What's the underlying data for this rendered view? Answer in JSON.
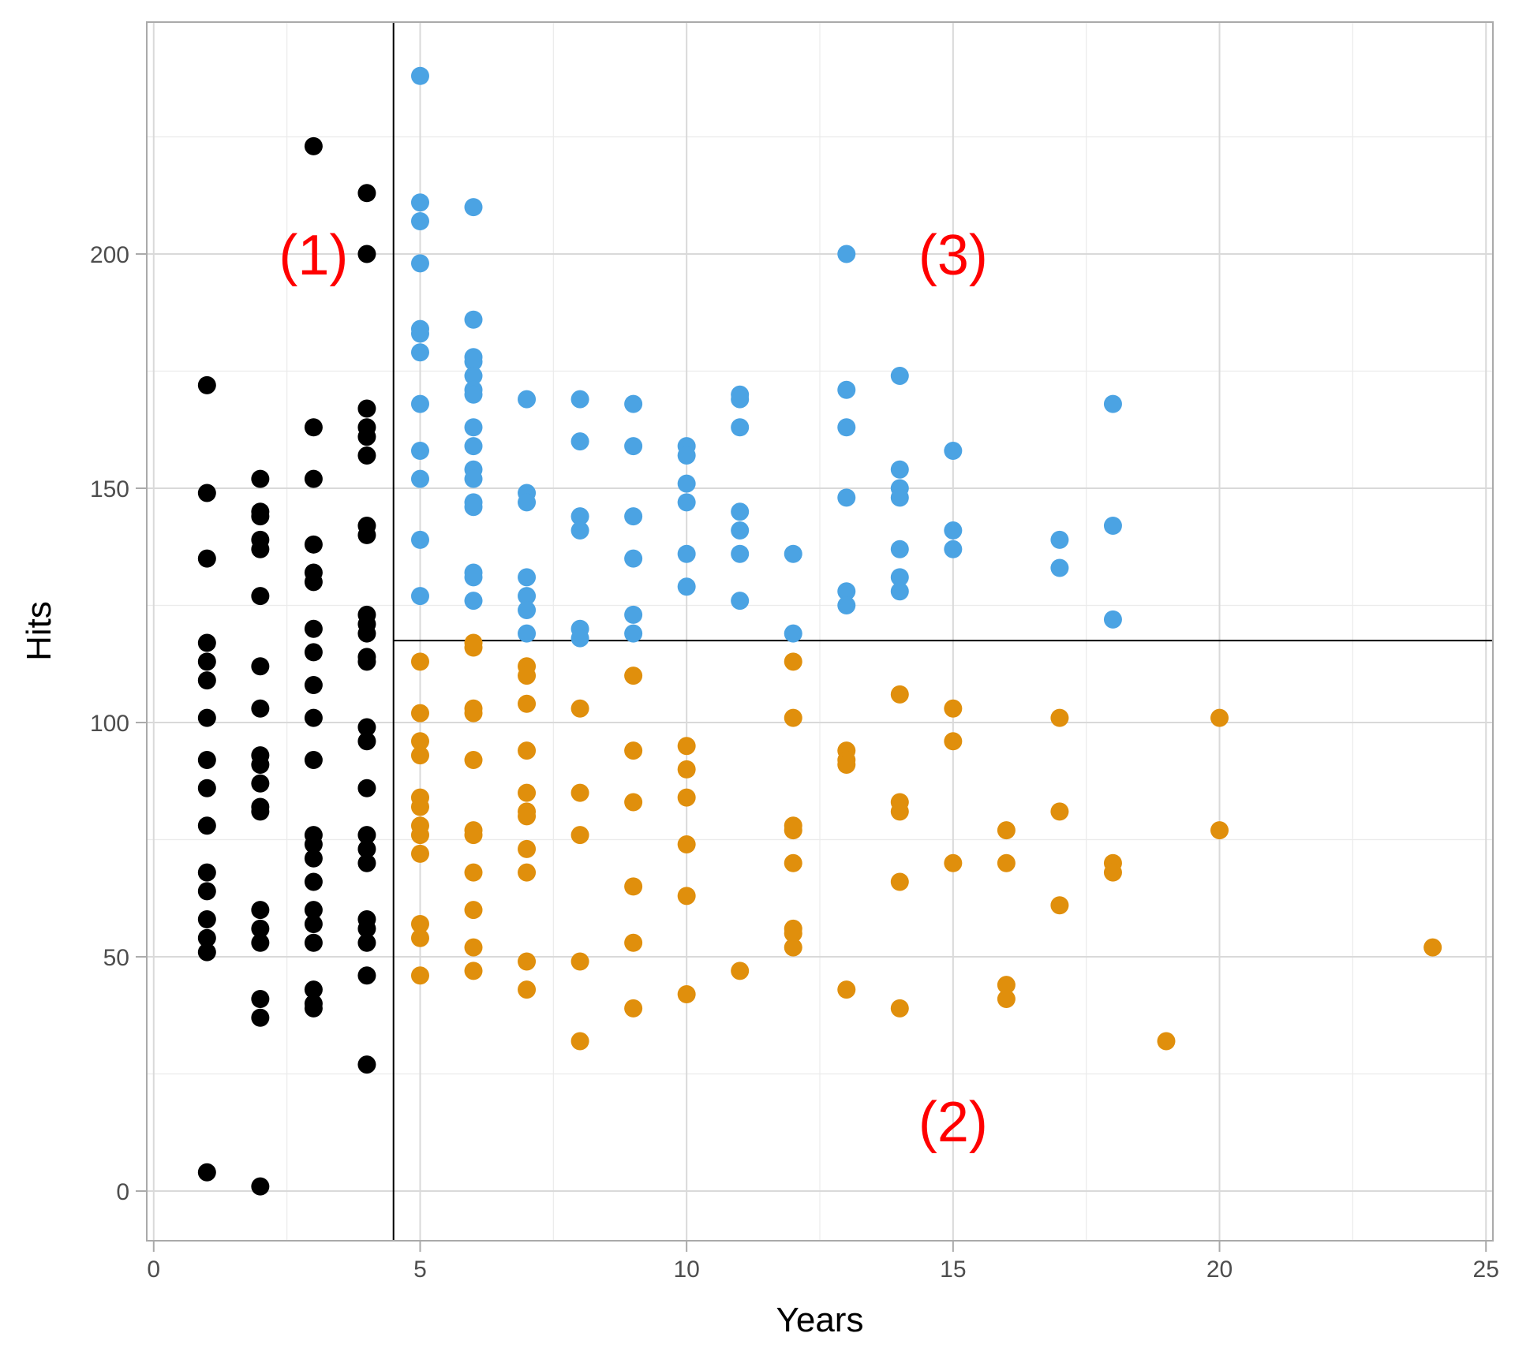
{
  "chart_data": {
    "type": "scatter",
    "title": "",
    "xlabel": "Years",
    "ylabel": "Hits",
    "xlim": [
      -0.13,
      25.13
    ],
    "ylim": [
      -10.6,
      249.5
    ],
    "x_ticks": [
      0,
      5,
      10,
      15,
      20,
      25
    ],
    "y_ticks": [
      0,
      50,
      100,
      150,
      200
    ],
    "grid": true,
    "legend": "none",
    "colors": {
      "region1": "#000000",
      "region2": "#e08f0c",
      "region3": "#4ba3e3",
      "annotation": "#ff0000",
      "split_line": "#000000"
    },
    "split_lines": {
      "vertical_x": 4.5,
      "horizontal_y": 117.5,
      "horizontal_from_x": 4.5
    },
    "annotations": [
      {
        "text": "(1)",
        "x": 3,
        "y": 200
      },
      {
        "text": "(2)",
        "x": 15,
        "y": 15
      },
      {
        "text": "(3)",
        "x": 15,
        "y": 200
      }
    ],
    "series": [
      {
        "name": "region1",
        "color": "#000000",
        "points": [
          [
            1,
            172
          ],
          [
            1,
            149
          ],
          [
            1,
            135
          ],
          [
            1,
            117
          ],
          [
            1,
            113
          ],
          [
            1,
            109
          ],
          [
            1,
            101
          ],
          [
            1,
            92
          ],
          [
            1,
            86
          ],
          [
            1,
            78
          ],
          [
            1,
            68
          ],
          [
            1,
            64
          ],
          [
            1,
            58
          ],
          [
            1,
            54
          ],
          [
            1,
            51
          ],
          [
            1,
            4
          ],
          [
            2,
            152
          ],
          [
            2,
            145
          ],
          [
            2,
            144
          ],
          [
            2,
            139
          ],
          [
            2,
            137
          ],
          [
            2,
            127
          ],
          [
            2,
            112
          ],
          [
            2,
            103
          ],
          [
            2,
            93
          ],
          [
            2,
            91
          ],
          [
            2,
            87
          ],
          [
            2,
            82
          ],
          [
            2,
            81
          ],
          [
            2,
            60
          ],
          [
            2,
            56
          ],
          [
            2,
            53
          ],
          [
            2,
            41
          ],
          [
            2,
            37
          ],
          [
            2,
            1
          ],
          [
            3,
            223
          ],
          [
            3,
            163
          ],
          [
            3,
            152
          ],
          [
            3,
            138
          ],
          [
            3,
            132
          ],
          [
            3,
            130
          ],
          [
            3,
            120
          ],
          [
            3,
            115
          ],
          [
            3,
            108
          ],
          [
            3,
            101
          ],
          [
            3,
            92
          ],
          [
            3,
            76
          ],
          [
            3,
            74
          ],
          [
            3,
            71
          ],
          [
            3,
            66
          ],
          [
            3,
            60
          ],
          [
            3,
            57
          ],
          [
            3,
            53
          ],
          [
            3,
            43
          ],
          [
            3,
            40
          ],
          [
            3,
            39
          ],
          [
            4,
            213
          ],
          [
            4,
            200
          ],
          [
            4,
            167
          ],
          [
            4,
            163
          ],
          [
            4,
            161
          ],
          [
            4,
            157
          ],
          [
            4,
            142
          ],
          [
            4,
            140
          ],
          [
            4,
            123
          ],
          [
            4,
            121
          ],
          [
            4,
            119
          ],
          [
            4,
            114
          ],
          [
            4,
            113
          ],
          [
            4,
            99
          ],
          [
            4,
            96
          ],
          [
            4,
            86
          ],
          [
            4,
            76
          ],
          [
            4,
            73
          ],
          [
            4,
            70
          ],
          [
            4,
            58
          ],
          [
            4,
            56
          ],
          [
            4,
            53
          ],
          [
            4,
            46
          ],
          [
            4,
            27
          ]
        ]
      },
      {
        "name": "region3",
        "color": "#4ba3e3",
        "points": [
          [
            5,
            238
          ],
          [
            5,
            211
          ],
          [
            5,
            207
          ],
          [
            5,
            198
          ],
          [
            5,
            184
          ],
          [
            5,
            183
          ],
          [
            5,
            179
          ],
          [
            5,
            168
          ],
          [
            5,
            158
          ],
          [
            5,
            152
          ],
          [
            5,
            139
          ],
          [
            5,
            127
          ],
          [
            6,
            210
          ],
          [
            6,
            186
          ],
          [
            6,
            178
          ],
          [
            6,
            177
          ],
          [
            6,
            174
          ],
          [
            6,
            171
          ],
          [
            6,
            170
          ],
          [
            6,
            163
          ],
          [
            6,
            159
          ],
          [
            6,
            154
          ],
          [
            6,
            152
          ],
          [
            6,
            147
          ],
          [
            6,
            146
          ],
          [
            6,
            132
          ],
          [
            6,
            131
          ],
          [
            6,
            126
          ],
          [
            7,
            169
          ],
          [
            7,
            149
          ],
          [
            7,
            147
          ],
          [
            7,
            131
          ],
          [
            7,
            127
          ],
          [
            7,
            124
          ],
          [
            7,
            119
          ],
          [
            8,
            169
          ],
          [
            8,
            160
          ],
          [
            8,
            144
          ],
          [
            8,
            141
          ],
          [
            8,
            120
          ],
          [
            8,
            118
          ],
          [
            9,
            168
          ],
          [
            9,
            159
          ],
          [
            9,
            144
          ],
          [
            9,
            135
          ],
          [
            9,
            123
          ],
          [
            9,
            119
          ],
          [
            10,
            159
          ],
          [
            10,
            157
          ],
          [
            10,
            151
          ],
          [
            10,
            147
          ],
          [
            10,
            136
          ],
          [
            10,
            129
          ],
          [
            11,
            170
          ],
          [
            11,
            169
          ],
          [
            11,
            163
          ],
          [
            11,
            145
          ],
          [
            11,
            141
          ],
          [
            11,
            136
          ],
          [
            11,
            126
          ],
          [
            12,
            136
          ],
          [
            12,
            119
          ],
          [
            13,
            200
          ],
          [
            13,
            171
          ],
          [
            13,
            163
          ],
          [
            13,
            148
          ],
          [
            13,
            128
          ],
          [
            13,
            125
          ],
          [
            14,
            174
          ],
          [
            14,
            154
          ],
          [
            14,
            150
          ],
          [
            14,
            148
          ],
          [
            14,
            137
          ],
          [
            14,
            131
          ],
          [
            14,
            128
          ],
          [
            15,
            158
          ],
          [
            15,
            141
          ],
          [
            15,
            137
          ],
          [
            17,
            139
          ],
          [
            17,
            133
          ],
          [
            18,
            168
          ],
          [
            18,
            142
          ],
          [
            18,
            122
          ]
        ]
      },
      {
        "name": "region2",
        "color": "#e08f0c",
        "points": [
          [
            5,
            113
          ],
          [
            5,
            102
          ],
          [
            5,
            96
          ],
          [
            5,
            93
          ],
          [
            5,
            84
          ],
          [
            5,
            82
          ],
          [
            5,
            78
          ],
          [
            5,
            76
          ],
          [
            5,
            72
          ],
          [
            5,
            57
          ],
          [
            5,
            54
          ],
          [
            5,
            46
          ],
          [
            6,
            117
          ],
          [
            6,
            116
          ],
          [
            6,
            103
          ],
          [
            6,
            102
          ],
          [
            6,
            92
          ],
          [
            6,
            77
          ],
          [
            6,
            76
          ],
          [
            6,
            68
          ],
          [
            6,
            60
          ],
          [
            6,
            52
          ],
          [
            6,
            47
          ],
          [
            7,
            112
          ],
          [
            7,
            110
          ],
          [
            7,
            104
          ],
          [
            7,
            94
          ],
          [
            7,
            85
          ],
          [
            7,
            81
          ],
          [
            7,
            80
          ],
          [
            7,
            73
          ],
          [
            7,
            68
          ],
          [
            7,
            49
          ],
          [
            7,
            43
          ],
          [
            8,
            103
          ],
          [
            8,
            85
          ],
          [
            8,
            76
          ],
          [
            8,
            49
          ],
          [
            8,
            32
          ],
          [
            9,
            110
          ],
          [
            9,
            94
          ],
          [
            9,
            83
          ],
          [
            9,
            65
          ],
          [
            9,
            53
          ],
          [
            9,
            39
          ],
          [
            10,
            95
          ],
          [
            10,
            90
          ],
          [
            10,
            84
          ],
          [
            10,
            74
          ],
          [
            10,
            63
          ],
          [
            10,
            42
          ],
          [
            11,
            47
          ],
          [
            12,
            113
          ],
          [
            12,
            101
          ],
          [
            12,
            78
          ],
          [
            12,
            77
          ],
          [
            12,
            70
          ],
          [
            12,
            56
          ],
          [
            12,
            55
          ],
          [
            12,
            52
          ],
          [
            13,
            94
          ],
          [
            13,
            92
          ],
          [
            13,
            91
          ],
          [
            13,
            43
          ],
          [
            14,
            106
          ],
          [
            14,
            83
          ],
          [
            14,
            81
          ],
          [
            14,
            66
          ],
          [
            14,
            39
          ],
          [
            15,
            103
          ],
          [
            15,
            96
          ],
          [
            15,
            70
          ],
          [
            16,
            77
          ],
          [
            16,
            70
          ],
          [
            16,
            44
          ],
          [
            16,
            41
          ],
          [
            17,
            101
          ],
          [
            17,
            81
          ],
          [
            17,
            61
          ],
          [
            18,
            70
          ],
          [
            18,
            68
          ],
          [
            19,
            32
          ],
          [
            20,
            101
          ],
          [
            20,
            77
          ],
          [
            24,
            52
          ]
        ]
      }
    ]
  }
}
